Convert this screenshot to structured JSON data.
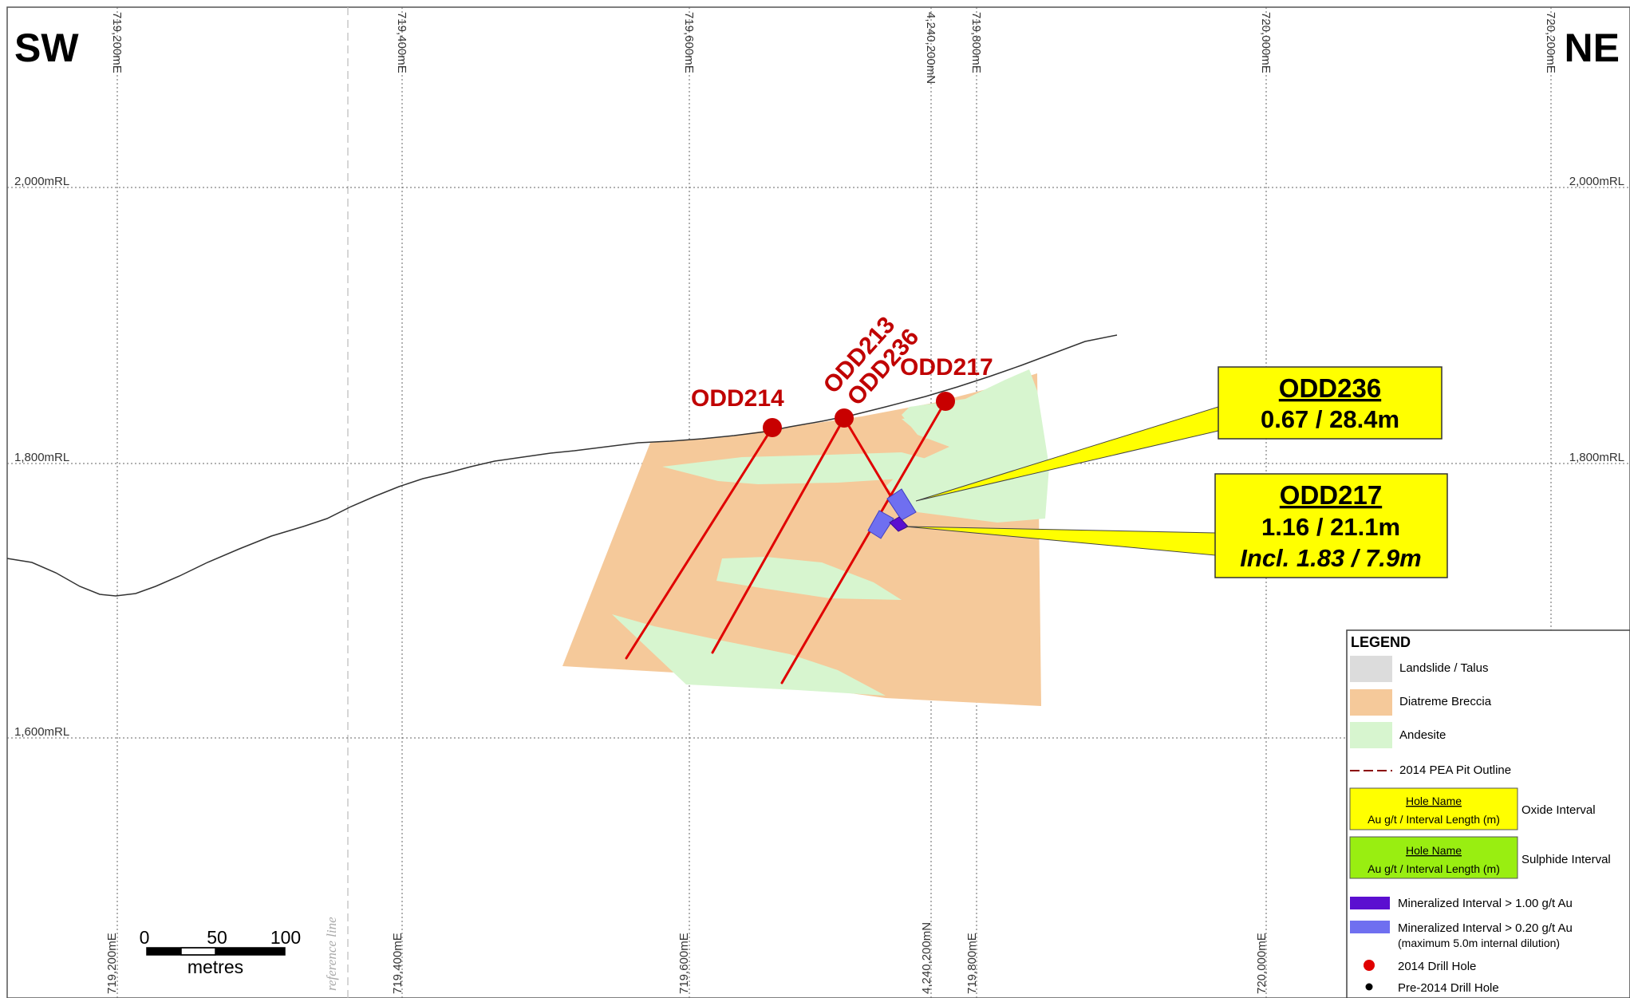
{
  "compass": {
    "left": "SW",
    "right": "NE"
  },
  "grid": {
    "easting_labels": [
      "719,200mE",
      "719,400mE",
      "719,600mE",
      "719,800mE",
      "720,000mE",
      "720,200mE"
    ],
    "northing_label": "4,240,200mN",
    "elevation_labels": [
      "2,000mRL",
      "1,800mRL",
      "1,600mRL"
    ]
  },
  "reference_line": "reference line",
  "drill_holes": [
    {
      "name": "ODD214"
    },
    {
      "name": "ODD213"
    },
    {
      "name": "ODD236"
    },
    {
      "name": "ODD217"
    }
  ],
  "callouts": [
    {
      "hole": "ODD236",
      "value": "0.67 / 28.4m"
    },
    {
      "hole": "ODD217",
      "value": "1.16 / 21.1m",
      "including": "Incl. 1.83 / 7.9m"
    }
  ],
  "scale_bar": {
    "ticks": [
      "0",
      "50",
      "100"
    ],
    "unit": "metres"
  },
  "legend": {
    "title": "LEGEND",
    "items": [
      {
        "label": "Landslide / Talus",
        "color": "#dcdcdc"
      },
      {
        "label": "Diatreme Breccia",
        "color": "#f5c99a"
      },
      {
        "label": "Andesite",
        "color": "#d7f5cf"
      },
      {
        "label": "2014 PEA Pit Outline",
        "color": "#8b0000"
      }
    ],
    "oxide": {
      "name": "Hole Name",
      "value": "Au g/t / Interval Length (m)",
      "label": "Oxide Interval",
      "color": "#ffff00"
    },
    "sulphide": {
      "name": "Hole Name",
      "value": "Au g/t / Interval Length (m)",
      "label": "Sulphide Interval",
      "color": "#99ee11"
    },
    "mineralized_high": {
      "label": "Mineralized Interval > 1.00 g/t Au",
      "color": "#5b0fd0"
    },
    "mineralized_low": {
      "label": "Mineralized Interval > 0.20 g/t Au",
      "sublabel": "(maximum 5.0m internal dilution)",
      "color": "#6f6ff0"
    },
    "drill_2014": {
      "label": "2014 Drill Hole",
      "color": "#e00000"
    },
    "drill_pre": {
      "label": "Pre-2014 Drill Hole",
      "color": "#000000"
    }
  },
  "colors": {
    "breccia": "#f5c99a",
    "andesite": "#d7f5cf",
    "drill_trace": "#e00000",
    "collar": "#c80000",
    "callout_fill": "#ffff00"
  }
}
